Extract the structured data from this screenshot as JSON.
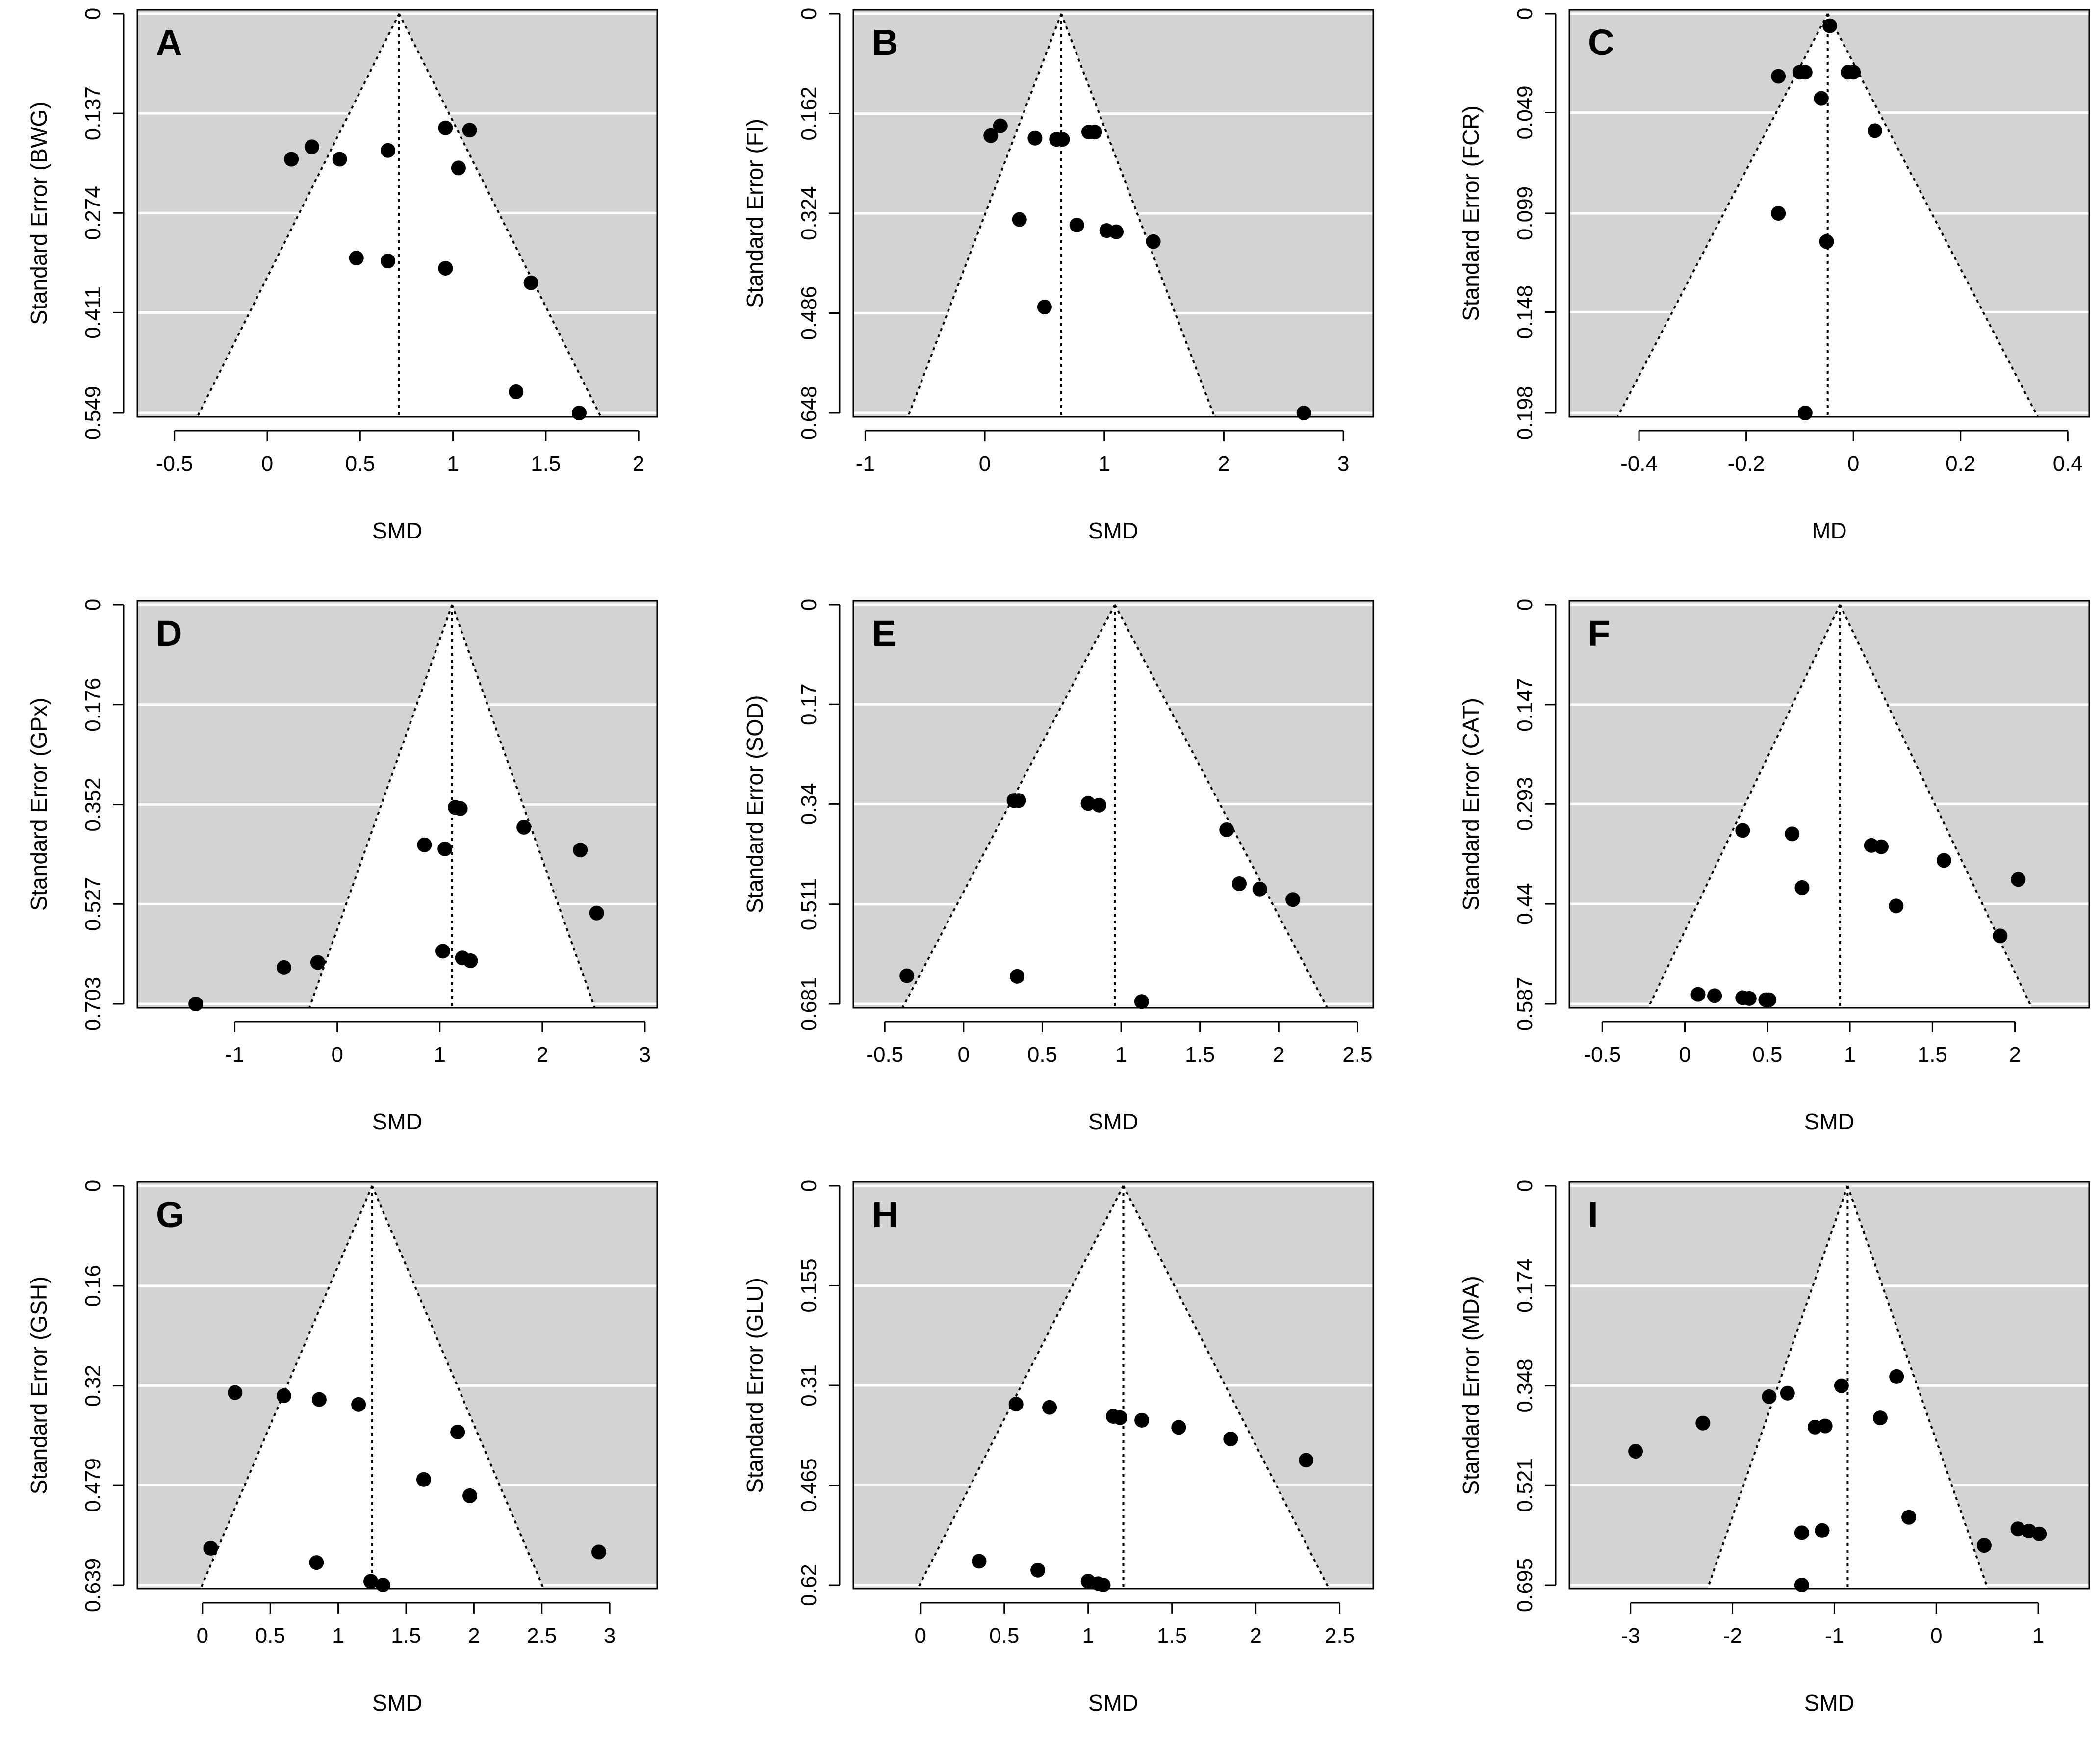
{
  "colors": {
    "panel_background": "#d3d3d3",
    "gridline": "#ffffff",
    "funnel": "#ffffff",
    "point": "#000000"
  },
  "chart_data": [
    {
      "type": "scatter",
      "subtype": "funnel",
      "label": "A",
      "xlabel": "SMD",
      "ylabel": "Standard Error (BWG)",
      "xlim": [
        -0.7,
        2.1
      ],
      "xticks": [
        -0.5,
        0,
        0.5,
        1,
        1.5,
        2
      ],
      "xtick_labels": [
        "-0.5",
        "0",
        "0.5",
        "1",
        "1.5",
        "2"
      ],
      "ylim": [
        0,
        0.549
      ],
      "yticks": [
        0,
        0.137,
        0.274,
        0.411,
        0.549
      ],
      "ytick_labels": [
        "0",
        "0.137",
        "0.274",
        "0.411",
        "0.549"
      ],
      "summary_estimate": 0.71,
      "points": [
        [
          0.13,
          0.2
        ],
        [
          0.24,
          0.183
        ],
        [
          0.39,
          0.2
        ],
        [
          0.65,
          0.188
        ],
        [
          0.96,
          0.157
        ],
        [
          1.09,
          0.16
        ],
        [
          1.03,
          0.212
        ],
        [
          0.48,
          0.336
        ],
        [
          0.65,
          0.34
        ],
        [
          0.96,
          0.35
        ],
        [
          1.42,
          0.37
        ],
        [
          1.34,
          0.52
        ],
        [
          1.68,
          0.549
        ]
      ]
    },
    {
      "type": "scatter",
      "subtype": "funnel",
      "label": "B",
      "xlabel": "SMD",
      "ylabel": "Standard Error (FI)",
      "xlim": [
        -1.1,
        3.25
      ],
      "xticks": [
        -1,
        0,
        1,
        2,
        3
      ],
      "xtick_labels": [
        "-1",
        "0",
        "1",
        "2",
        "3"
      ],
      "ylim": [
        0,
        0.648
      ],
      "yticks": [
        0,
        0.162,
        0.324,
        0.486,
        0.648
      ],
      "ytick_labels": [
        "0",
        "0.162",
        "0.324",
        "0.486",
        "0.648"
      ],
      "summary_estimate": 0.64,
      "points": [
        [
          0.05,
          0.198
        ],
        [
          0.13,
          0.182
        ],
        [
          0.42,
          0.202
        ],
        [
          0.6,
          0.204
        ],
        [
          0.65,
          0.204
        ],
        [
          0.87,
          0.192
        ],
        [
          0.92,
          0.192
        ],
        [
          0.29,
          0.334
        ],
        [
          0.77,
          0.343
        ],
        [
          1.02,
          0.352
        ],
        [
          1.1,
          0.354
        ],
        [
          1.41,
          0.37
        ],
        [
          0.5,
          0.476
        ],
        [
          2.67,
          0.648
        ]
      ]
    },
    {
      "type": "scatter",
      "subtype": "funnel",
      "label": "C",
      "xlabel": "MD",
      "ylabel": "Standard Error (FCR)",
      "xlim": [
        -0.53,
        0.44
      ],
      "xticks": [
        -0.4,
        -0.2,
        0,
        0.2,
        0.4
      ],
      "xtick_labels": [
        "-0.4",
        "-0.2",
        "0",
        "0.2",
        "0.4"
      ],
      "ylim": [
        0,
        0.198
      ],
      "yticks": [
        0,
        0.049,
        0.099,
        0.148,
        0.198
      ],
      "ytick_labels": [
        "0",
        "0.049",
        "0.099",
        "0.148",
        "0.198"
      ],
      "summary_estimate": -0.048,
      "points": [
        [
          -0.044,
          0.006
        ],
        [
          -0.14,
          0.031
        ],
        [
          -0.1,
          0.029
        ],
        [
          -0.09,
          0.029
        ],
        [
          -0.01,
          0.029
        ],
        [
          0.0,
          0.029
        ],
        [
          -0.06,
          0.042
        ],
        [
          0.04,
          0.058
        ],
        [
          -0.14,
          0.099
        ],
        [
          -0.05,
          0.113
        ],
        [
          -0.09,
          0.198
        ]
      ]
    },
    {
      "type": "scatter",
      "subtype": "funnel",
      "label": "D",
      "xlabel": "SMD",
      "ylabel": "Standard Error (GPx)",
      "xlim": [
        -1.95,
        3.12
      ],
      "xticks": [
        -1,
        0,
        1,
        2,
        3
      ],
      "xtick_labels": [
        "-1",
        "0",
        "1",
        "2",
        "3"
      ],
      "ylim": [
        0,
        0.703
      ],
      "yticks": [
        0,
        0.176,
        0.352,
        0.527,
        0.703
      ],
      "ytick_labels": [
        "0",
        "0.176",
        "0.352",
        "0.527",
        "0.703"
      ],
      "summary_estimate": 1.12,
      "points": [
        [
          1.15,
          0.357
        ],
        [
          1.2,
          0.359
        ],
        [
          1.82,
          0.392
        ],
        [
          0.85,
          0.423
        ],
        [
          1.05,
          0.43
        ],
        [
          2.37,
          0.432
        ],
        [
          2.53,
          0.543
        ],
        [
          1.03,
          0.61
        ],
        [
          1.22,
          0.622
        ],
        [
          1.3,
          0.627
        ],
        [
          -0.19,
          0.63
        ],
        [
          -0.52,
          0.639
        ],
        [
          -1.38,
          0.703
        ]
      ]
    },
    {
      "type": "scatter",
      "subtype": "funnel",
      "label": "E",
      "xlabel": "SMD",
      "ylabel": "Standard Error (SOD)",
      "xlim": [
        -0.7,
        2.6
      ],
      "xticks": [
        -0.5,
        0,
        0.5,
        1,
        1.5,
        2,
        2.5
      ],
      "xtick_labels": [
        "-0.5",
        "0",
        "0.5",
        "1",
        "1.5",
        "2",
        "2.5"
      ],
      "ylim": [
        0,
        0.681
      ],
      "yticks": [
        0,
        0.17,
        0.34,
        0.511,
        0.681
      ],
      "ytick_labels": [
        "0",
        "0.17",
        "0.34",
        "0.511",
        "0.681"
      ],
      "summary_estimate": 0.96,
      "points": [
        [
          0.32,
          0.334
        ],
        [
          0.35,
          0.334
        ],
        [
          0.79,
          0.339
        ],
        [
          0.86,
          0.342
        ],
        [
          1.67,
          0.384
        ],
        [
          1.75,
          0.476
        ],
        [
          1.88,
          0.485
        ],
        [
          2.09,
          0.503
        ],
        [
          -0.36,
          0.633
        ],
        [
          0.34,
          0.634
        ],
        [
          1.13,
          0.677
        ]
      ]
    },
    {
      "type": "scatter",
      "subtype": "funnel",
      "label": "F",
      "xlabel": "SMD",
      "ylabel": "Standard Error (CAT)",
      "xlim": [
        -0.7,
        2.45
      ],
      "xticks": [
        -0.5,
        0,
        0.5,
        1,
        1.5,
        2
      ],
      "xtick_labels": [
        "-0.5",
        "0",
        "0.5",
        "1",
        "1.5",
        "2"
      ],
      "ylim": [
        0,
        0.587
      ],
      "yticks": [
        0,
        0.147,
        0.293,
        0.44,
        0.587
      ],
      "ytick_labels": [
        "0",
        "0.147",
        "0.293",
        "0.44",
        "0.587"
      ],
      "summary_estimate": 0.94,
      "points": [
        [
          0.35,
          0.332
        ],
        [
          0.65,
          0.337
        ],
        [
          1.13,
          0.354
        ],
        [
          1.19,
          0.356
        ],
        [
          1.57,
          0.376
        ],
        [
          2.02,
          0.404
        ],
        [
          0.71,
          0.416
        ],
        [
          1.28,
          0.443
        ],
        [
          1.91,
          0.487
        ],
        [
          0.08,
          0.573
        ],
        [
          0.18,
          0.575
        ],
        [
          0.35,
          0.578
        ],
        [
          0.39,
          0.579
        ],
        [
          0.49,
          0.581
        ],
        [
          0.51,
          0.581
        ]
      ]
    },
    {
      "type": "scatter",
      "subtype": "funnel",
      "label": "G",
      "xlabel": "SMD",
      "ylabel": "Standard Error (GSH)",
      "xlim": [
        -0.48,
        3.35
      ],
      "xticks": [
        0,
        0.5,
        1,
        1.5,
        2,
        2.5,
        3
      ],
      "xtick_labels": [
        "0",
        "0.5",
        "1",
        "1.5",
        "2",
        "2.5",
        "3"
      ],
      "ylim": [
        0,
        0.639
      ],
      "yticks": [
        0,
        0.16,
        0.32,
        0.479,
        0.639
      ],
      "ytick_labels": [
        "0",
        "0.16",
        "0.32",
        "0.479",
        "0.639"
      ],
      "summary_estimate": 1.25,
      "points": [
        [
          0.24,
          0.331
        ],
        [
          0.6,
          0.336
        ],
        [
          0.86,
          0.342
        ],
        [
          1.15,
          0.35
        ],
        [
          1.88,
          0.394
        ],
        [
          1.63,
          0.47
        ],
        [
          1.97,
          0.496
        ],
        [
          0.06,
          0.58
        ],
        [
          2.92,
          0.586
        ],
        [
          0.84,
          0.603
        ],
        [
          1.24,
          0.633
        ],
        [
          1.33,
          0.639
        ]
      ]
    },
    {
      "type": "scatter",
      "subtype": "funnel",
      "label": "H",
      "xlabel": "SMD",
      "ylabel": "Standard Error (GLU)",
      "xlim": [
        -0.4,
        2.7
      ],
      "xticks": [
        0,
        0.5,
        1,
        1.5,
        2,
        2.5
      ],
      "xtick_labels": [
        "0",
        "0.5",
        "1",
        "1.5",
        "2",
        "2.5"
      ],
      "ylim": [
        0,
        0.62
      ],
      "yticks": [
        0,
        0.155,
        0.31,
        0.465,
        0.62
      ],
      "ytick_labels": [
        "0",
        "0.155",
        "0.31",
        "0.465",
        "0.62"
      ],
      "summary_estimate": 1.21,
      "points": [
        [
          0.57,
          0.339
        ],
        [
          0.77,
          0.344
        ],
        [
          1.15,
          0.358
        ],
        [
          1.19,
          0.36
        ],
        [
          1.32,
          0.364
        ],
        [
          1.54,
          0.375
        ],
        [
          1.85,
          0.393
        ],
        [
          2.3,
          0.426
        ],
        [
          0.35,
          0.583
        ],
        [
          0.7,
          0.597
        ],
        [
          1.0,
          0.614
        ],
        [
          1.06,
          0.618
        ],
        [
          1.09,
          0.62
        ]
      ]
    },
    {
      "type": "scatter",
      "subtype": "funnel",
      "label": "I",
      "xlabel": "SMD",
      "ylabel": "Standard Error (MDA)",
      "xlim": [
        -3.6,
        1.5
      ],
      "xticks": [
        -3,
        -2,
        -1,
        0,
        1
      ],
      "xtick_labels": [
        "-3",
        "-2",
        "-1",
        "0",
        "1"
      ],
      "ylim": [
        0,
        0.695
      ],
      "yticks": [
        0,
        0.174,
        0.348,
        0.521,
        0.695
      ],
      "ytick_labels": [
        "0",
        "0.174",
        "0.348",
        "0.521",
        "0.695"
      ],
      "summary_estimate": -0.87,
      "points": [
        [
          -0.39,
          0.332
        ],
        [
          -0.93,
          0.348
        ],
        [
          -1.46,
          0.361
        ],
        [
          -1.64,
          0.367
        ],
        [
          -2.29,
          0.413
        ],
        [
          -1.09,
          0.418
        ],
        [
          -1.19,
          0.42
        ],
        [
          -0.55,
          0.404
        ],
        [
          -2.95,
          0.462
        ],
        [
          -0.27,
          0.577
        ],
        [
          -1.32,
          0.604
        ],
        [
          -1.12,
          0.6
        ],
        [
          0.8,
          0.597
        ],
        [
          0.91,
          0.601
        ],
        [
          1.01,
          0.606
        ],
        [
          0.47,
          0.626
        ],
        [
          -1.32,
          0.695
        ]
      ]
    }
  ]
}
